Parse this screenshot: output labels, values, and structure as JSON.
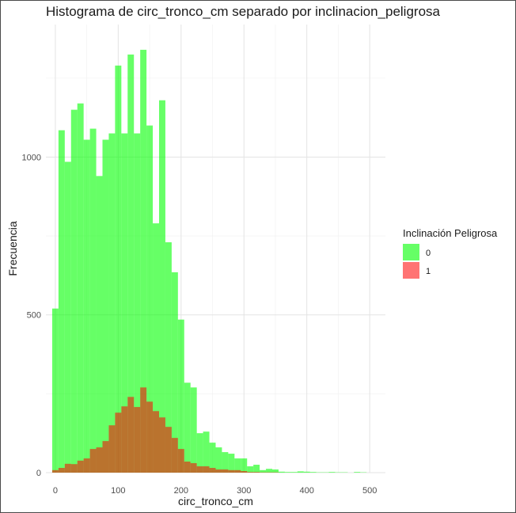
{
  "chart_data": {
    "type": "bar",
    "subtype": "overlaid-histogram",
    "title": "Histograma de circ_tronco_cm separado por inclinacion_peligrosa",
    "xlabel": "circ_tronco_cm",
    "ylabel": "Frecuencia",
    "xlim": [
      -15,
      525
    ],
    "ylim": [
      0,
      1420
    ],
    "x_ticks": [
      "0",
      "100",
      "200",
      "300",
      "400",
      "500"
    ],
    "y_ticks": [
      "0",
      "500",
      "1000"
    ],
    "grid": true,
    "legend": {
      "title": "Inclinación Peligrosa",
      "position": "right"
    },
    "bin_width": 10,
    "bin_starts": [
      -5,
      5,
      15,
      25,
      35,
      45,
      55,
      65,
      75,
      85,
      95,
      105,
      115,
      125,
      135,
      145,
      155,
      165,
      175,
      185,
      195,
      205,
      215,
      225,
      235,
      245,
      255,
      265,
      275,
      285,
      295,
      305,
      315,
      325,
      335,
      345,
      355,
      365,
      375,
      385,
      395,
      405,
      415,
      425,
      435,
      445,
      455,
      465,
      475,
      485,
      495
    ],
    "series": [
      {
        "name": "0",
        "color": "#00FF00",
        "opacity": 0.6,
        "values": [
          520,
          1085,
          985,
          1150,
          1170,
          1055,
          1090,
          940,
          1055,
          1075,
          1290,
          1075,
          1325,
          1075,
          1340,
          1100,
          790,
          1180,
          730,
          635,
          485,
          285,
          270,
          125,
          130,
          95,
          80,
          65,
          60,
          45,
          45,
          20,
          25,
          8,
          12,
          10,
          3,
          2,
          2,
          4,
          3,
          2,
          1,
          1,
          2,
          1,
          1,
          0,
          2,
          1,
          0
        ]
      },
      {
        "name": "1",
        "color": "#FF0000",
        "opacity": 0.55,
        "values": [
          8,
          15,
          28,
          27,
          38,
          45,
          75,
          80,
          100,
          150,
          190,
          210,
          240,
          208,
          270,
          225,
          195,
          175,
          145,
          110,
          75,
          35,
          30,
          20,
          20,
          15,
          10,
          10,
          8,
          8,
          5,
          2,
          2,
          1,
          1,
          1,
          0,
          0,
          0,
          0,
          0,
          0,
          0,
          0,
          0,
          0,
          0,
          0,
          0,
          0,
          0
        ]
      }
    ]
  }
}
